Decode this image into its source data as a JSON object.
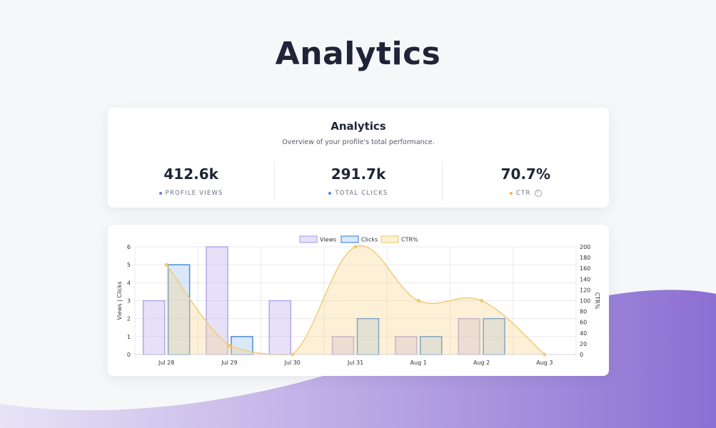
{
  "page": {
    "title": "Analytics"
  },
  "summary": {
    "title": "Analytics",
    "subtitle": "Overview of your profile's total performance.",
    "stats": [
      {
        "value": "412.6k",
        "label": "PROFILE VIEWS",
        "dot_color": "#6f73d6"
      },
      {
        "value": "291.7k",
        "label": "TOTAL CLICKS",
        "dot_color": "#4a8de0"
      },
      {
        "value": "70.7%",
        "label": "CTR",
        "dot_color": "#f2b540"
      }
    ],
    "help_icon": "?"
  },
  "colors": {
    "views_fill": "rgba(186,170,236,0.35)",
    "views_stroke": "#b3a6e6",
    "clicks_fill": "rgba(150,190,238,0.35)",
    "clicks_stroke": "#4a8de0",
    "ctr_fill": "rgba(246,212,140,0.35)",
    "ctr_stroke": "#f0cd7a",
    "ctr_point": "#f2c867",
    "wave_start": "#e8e3f6",
    "wave_end": "#8c6fd3"
  },
  "chart_data": {
    "type": "bar",
    "categories": [
      "Jul 28",
      "Jul 29",
      "Jul 30",
      "Jul 31",
      "Aug 1",
      "Aug 2",
      "Aug 3"
    ],
    "series": [
      {
        "name": "Views",
        "type": "bar",
        "axis": "left",
        "values": [
          3,
          6,
          3,
          1,
          1,
          2,
          0
        ]
      },
      {
        "name": "Clicks",
        "type": "bar",
        "axis": "left",
        "values": [
          5,
          1,
          0,
          2,
          1,
          2,
          0
        ]
      },
      {
        "name": "CTR%",
        "type": "area",
        "axis": "right",
        "values": [
          166.7,
          16.7,
          0,
          200,
          100,
          100,
          0
        ]
      }
    ],
    "ylabel": "Views | Clicks",
    "y2label": "CTR%",
    "ylim": [
      0,
      6
    ],
    "y2lim": [
      0,
      200
    ],
    "yticks": [
      0,
      1,
      2,
      3,
      4,
      5,
      6
    ],
    "y2ticks": [
      0,
      20,
      40,
      60,
      80,
      100,
      120,
      140,
      160,
      180,
      200
    ],
    "legend": "top-center",
    "grid": true
  }
}
